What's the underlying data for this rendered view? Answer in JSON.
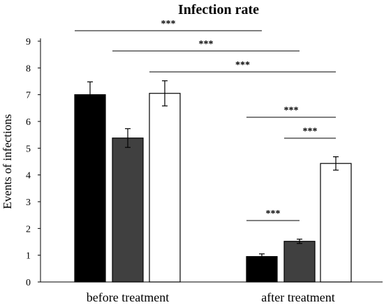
{
  "chart_data": {
    "type": "bar",
    "title": "Infection rate",
    "xlabel": "",
    "ylabel": "Events of infections",
    "ylim": [
      0,
      9
    ],
    "yticks": [
      0,
      1,
      2,
      3,
      4,
      5,
      6,
      7,
      8,
      9
    ],
    "categories": [
      "before treatment",
      "after treatment"
    ],
    "series": [
      {
        "color": "#000000",
        "values": [
          7.0,
          0.95
        ],
        "errors": [
          0.48,
          0.1
        ]
      },
      {
        "color": "#404040",
        "values": [
          5.38,
          1.52
        ],
        "errors": [
          0.35,
          0.08
        ]
      },
      {
        "color": "#ffffff",
        "values": [
          7.05,
          4.43
        ],
        "errors": [
          0.47,
          0.25
        ]
      }
    ],
    "significance": [
      {
        "from": [
          0,
          0
        ],
        "to": [
          1,
          0
        ],
        "label": "***"
      },
      {
        "from": [
          0,
          1
        ],
        "to": [
          1,
          1
        ],
        "label": "***"
      },
      {
        "from": [
          0,
          2
        ],
        "to": [
          1,
          2
        ],
        "label": "***"
      },
      {
        "from": [
          1,
          0
        ],
        "to": [
          1,
          2
        ],
        "label": "***"
      },
      {
        "from": [
          1,
          1
        ],
        "to": [
          1,
          2
        ],
        "label": "***"
      },
      {
        "from": [
          1,
          0
        ],
        "to": [
          1,
          1
        ],
        "label": "***"
      }
    ],
    "grid": false,
    "legend": "none"
  }
}
